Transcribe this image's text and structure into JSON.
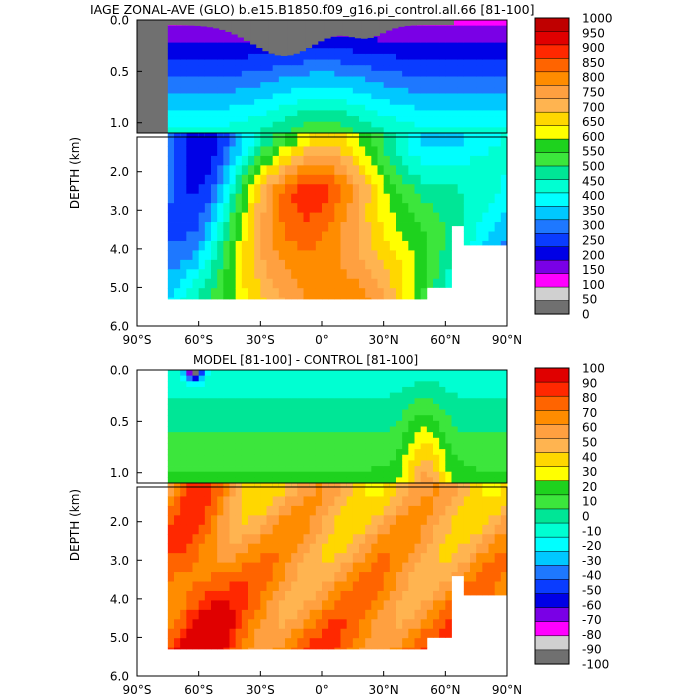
{
  "chart_data": [
    {
      "type": "heatmap",
      "title": "IAGE ZONAL-AVE (GLO) b.e15.B1850.f09_g16.pi_control.all.66 [81-100]",
      "ylabel": "DEPTH (km)",
      "xlabel": "",
      "xlim": [
        -90,
        90
      ],
      "ylim": [
        6.0,
        0.0
      ],
      "depth_split_km": 1.1,
      "x_ticks": [
        "90°S",
        "60°S",
        "30°S",
        "0°",
        "30°N",
        "60°N",
        "90°N"
      ],
      "y_ticks": [
        "0.0",
        "0.5",
        "1.0",
        "2.0",
        "3.0",
        "4.0",
        "5.0",
        "6.0"
      ],
      "colorbar": {
        "labels": [
          "1000",
          "950",
          "900",
          "850",
          "800",
          "750",
          "700",
          "650",
          "600",
          "550",
          "500",
          "450",
          "400",
          "350",
          "300",
          "250",
          "200",
          "150",
          "100",
          "50",
          "0"
        ],
        "colors": [
          "#ffffff",
          "#bf0000",
          "#e00000",
          "#ff2800",
          "#ff6400",
          "#ff8c00",
          "#ffa040",
          "#ffb450",
          "#ffd700",
          "#ffff00",
          "#1ed21e",
          "#3ce63c",
          "#00e696",
          "#00ffd2",
          "#00ffff",
          "#00c8ff",
          "#1e78ff",
          "#0a3cff",
          "#0000e6",
          "#7a00e6",
          "#ff00ff",
          "#d0d0d0",
          "#707070"
        ]
      }
    },
    {
      "type": "heatmap",
      "title": "MODEL [81-100] - CONTROL [81-100]",
      "ylabel": "DEPTH (km)",
      "xlabel": "",
      "xlim": [
        -90,
        90
      ],
      "ylim": [
        6.0,
        0.0
      ],
      "depth_split_km": 1.1,
      "x_ticks": [
        "90°S",
        "60°S",
        "30°S",
        "0°",
        "30°N",
        "60°N",
        "90°N"
      ],
      "y_ticks": [
        "0.0",
        "0.5",
        "1.0",
        "2.0",
        "3.0",
        "4.0",
        "5.0",
        "6.0"
      ],
      "colorbar": {
        "labels": [
          "100",
          "90",
          "80",
          "70",
          "60",
          "50",
          "40",
          "30",
          "20",
          "10",
          "0",
          "-10",
          "-20",
          "-30",
          "-40",
          "-50",
          "-60",
          "-70",
          "-80",
          "-90",
          "-100"
        ],
        "colors": [
          "#c80000",
          "#e00000",
          "#ff2800",
          "#ff6400",
          "#ff8c00",
          "#ffa040",
          "#ffb450",
          "#ffd700",
          "#ffff00",
          "#1ed21e",
          "#3ce63c",
          "#00e696",
          "#00ffd2",
          "#00ffff",
          "#00c8ff",
          "#1e78ff",
          "#0a3cff",
          "#0000e6",
          "#7a00e6",
          "#ff00ff",
          "#d0d0d0",
          "#707070"
        ]
      }
    }
  ]
}
